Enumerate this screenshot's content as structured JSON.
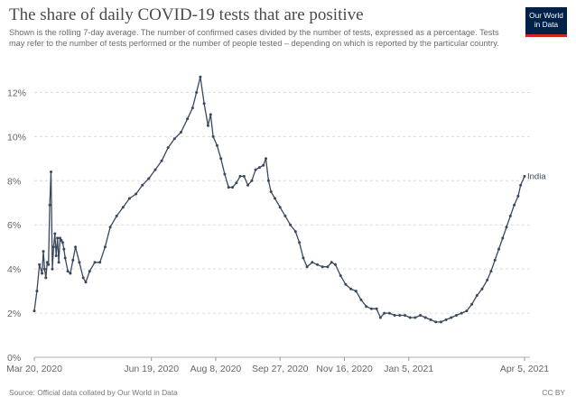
{
  "header": {
    "title": "The share of daily COVID-19 tests that are positive",
    "subtitle": "Shown is the rolling 7-day average. The number of confirmed cases divided by the number of tests, expressed as a percentage. Tests may refer to the number of tests performed or the number of people tested – depending on which is reported by the particular country."
  },
  "logo": {
    "line1": "Our World",
    "line2": "in Data",
    "bg_color": "#002147",
    "accent_color": "#ce261e"
  },
  "footer": {
    "source": "Source: Official data collated by Our World in Data",
    "license": "CC BY"
  },
  "chart_data": {
    "type": "line",
    "ylim": [
      0,
      13
    ],
    "y_ticks": [
      0,
      2,
      4,
      6,
      8,
      10,
      12
    ],
    "y_tick_labels": [
      "0%",
      "2%",
      "4%",
      "6%",
      "8%",
      "10%",
      "12%"
    ],
    "x_range": [
      "2020-03-20",
      "2021-04-05"
    ],
    "x_ticks": [
      "2020-03-20",
      "2020-06-19",
      "2020-08-08",
      "2020-09-27",
      "2020-11-16",
      "2021-01-05",
      "2021-04-05"
    ],
    "x_tick_labels": [
      "Mar 20, 2020",
      "Jun 19, 2020",
      "Aug 8, 2020",
      "Sep 27, 2020",
      "Nov 16, 2020",
      "Jan 5, 2021",
      "Apr 5, 2021"
    ],
    "grid": "horizontal dashed",
    "line_color": "#38485e",
    "series": [
      {
        "name": "India",
        "points": [
          [
            "2020-03-20",
            2.1
          ],
          [
            "2020-03-22",
            3.0
          ],
          [
            "2020-03-24",
            4.2
          ],
          [
            "2020-03-26",
            3.8
          ],
          [
            "2020-03-27",
            4.8
          ],
          [
            "2020-03-28",
            4.0
          ],
          [
            "2020-03-29",
            3.6
          ],
          [
            "2020-03-30",
            4.3
          ],
          [
            "2020-03-31",
            4.2
          ],
          [
            "2020-04-01",
            6.9
          ],
          [
            "2020-04-02",
            8.4
          ],
          [
            "2020-04-03",
            4.0
          ],
          [
            "2020-04-04",
            5.0
          ],
          [
            "2020-04-05",
            5.6
          ],
          [
            "2020-04-06",
            4.6
          ],
          [
            "2020-04-07",
            5.4
          ],
          [
            "2020-04-08",
            4.3
          ],
          [
            "2020-04-09",
            5.4
          ],
          [
            "2020-04-10",
            5.3
          ],
          [
            "2020-04-11",
            5.2
          ],
          [
            "2020-04-12",
            4.9
          ],
          [
            "2020-04-13",
            4.5
          ],
          [
            "2020-04-15",
            3.9
          ],
          [
            "2020-04-17",
            3.8
          ],
          [
            "2020-04-19",
            4.4
          ],
          [
            "2020-04-21",
            5.0
          ],
          [
            "2020-04-24",
            4.3
          ],
          [
            "2020-04-27",
            3.6
          ],
          [
            "2020-04-29",
            3.4
          ],
          [
            "2020-05-02",
            3.9
          ],
          [
            "2020-05-06",
            4.3
          ],
          [
            "2020-05-10",
            4.3
          ],
          [
            "2020-05-14",
            5.0
          ],
          [
            "2020-05-18",
            5.9
          ],
          [
            "2020-05-23",
            6.4
          ],
          [
            "2020-05-28",
            6.8
          ],
          [
            "2020-06-02",
            7.2
          ],
          [
            "2020-06-07",
            7.4
          ],
          [
            "2020-06-12",
            7.8
          ],
          [
            "2020-06-17",
            8.1
          ],
          [
            "2020-06-22",
            8.5
          ],
          [
            "2020-06-27",
            8.9
          ],
          [
            "2020-07-02",
            9.5
          ],
          [
            "2020-07-07",
            9.9
          ],
          [
            "2020-07-12",
            10.2
          ],
          [
            "2020-07-17",
            10.8
          ],
          [
            "2020-07-21",
            11.3
          ],
          [
            "2020-07-24",
            12.0
          ],
          [
            "2020-07-27",
            12.7
          ],
          [
            "2020-07-30",
            11.5
          ],
          [
            "2020-08-02",
            10.5
          ],
          [
            "2020-08-04",
            11.0
          ],
          [
            "2020-08-06",
            10.0
          ],
          [
            "2020-08-09",
            9.6
          ],
          [
            "2020-08-12",
            9.0
          ],
          [
            "2020-08-15",
            8.3
          ],
          [
            "2020-08-18",
            7.7
          ],
          [
            "2020-08-21",
            7.7
          ],
          [
            "2020-08-24",
            7.9
          ],
          [
            "2020-08-27",
            8.2
          ],
          [
            "2020-08-30",
            8.2
          ],
          [
            "2020-09-02",
            7.8
          ],
          [
            "2020-09-05",
            8.0
          ],
          [
            "2020-09-08",
            8.5
          ],
          [
            "2020-09-11",
            8.6
          ],
          [
            "2020-09-14",
            8.7
          ],
          [
            "2020-09-16",
            9.0
          ],
          [
            "2020-09-18",
            8.0
          ],
          [
            "2020-09-20",
            7.5
          ],
          [
            "2020-09-23",
            7.2
          ],
          [
            "2020-09-27",
            6.8
          ],
          [
            "2020-10-01",
            6.4
          ],
          [
            "2020-10-05",
            6.0
          ],
          [
            "2020-10-09",
            5.7
          ],
          [
            "2020-10-12",
            5.2
          ],
          [
            "2020-10-15",
            4.5
          ],
          [
            "2020-10-18",
            4.1
          ],
          [
            "2020-10-22",
            4.3
          ],
          [
            "2020-10-26",
            4.2
          ],
          [
            "2020-10-30",
            4.1
          ],
          [
            "2020-11-03",
            4.1
          ],
          [
            "2020-11-06",
            4.3
          ],
          [
            "2020-11-09",
            4.2
          ],
          [
            "2020-11-13",
            3.7
          ],
          [
            "2020-11-17",
            3.3
          ],
          [
            "2020-11-21",
            3.1
          ],
          [
            "2020-11-25",
            3.0
          ],
          [
            "2020-11-29",
            2.6
          ],
          [
            "2020-12-03",
            2.3
          ],
          [
            "2020-12-07",
            2.2
          ],
          [
            "2020-12-11",
            2.2
          ],
          [
            "2020-12-14",
            1.8
          ],
          [
            "2020-12-17",
            2.0
          ],
          [
            "2020-12-21",
            2.0
          ],
          [
            "2020-12-25",
            1.9
          ],
          [
            "2020-12-29",
            1.9
          ],
          [
            "2021-01-02",
            1.9
          ],
          [
            "2021-01-06",
            1.8
          ],
          [
            "2021-01-10",
            1.8
          ],
          [
            "2021-01-14",
            1.9
          ],
          [
            "2021-01-18",
            1.8
          ],
          [
            "2021-01-22",
            1.7
          ],
          [
            "2021-01-26",
            1.6
          ],
          [
            "2021-01-30",
            1.6
          ],
          [
            "2021-02-03",
            1.7
          ],
          [
            "2021-02-07",
            1.8
          ],
          [
            "2021-02-11",
            1.9
          ],
          [
            "2021-02-15",
            2.0
          ],
          [
            "2021-02-19",
            2.1
          ],
          [
            "2021-02-23",
            2.4
          ],
          [
            "2021-02-27",
            2.8
          ],
          [
            "2021-03-03",
            3.1
          ],
          [
            "2021-03-07",
            3.5
          ],
          [
            "2021-03-10",
            3.9
          ],
          [
            "2021-03-13",
            4.4
          ],
          [
            "2021-03-16",
            4.9
          ],
          [
            "2021-03-19",
            5.4
          ],
          [
            "2021-03-22",
            5.9
          ],
          [
            "2021-03-25",
            6.4
          ],
          [
            "2021-03-28",
            6.9
          ],
          [
            "2021-03-31",
            7.3
          ],
          [
            "2021-04-02",
            7.8
          ],
          [
            "2021-04-05",
            8.2
          ]
        ]
      }
    ]
  }
}
